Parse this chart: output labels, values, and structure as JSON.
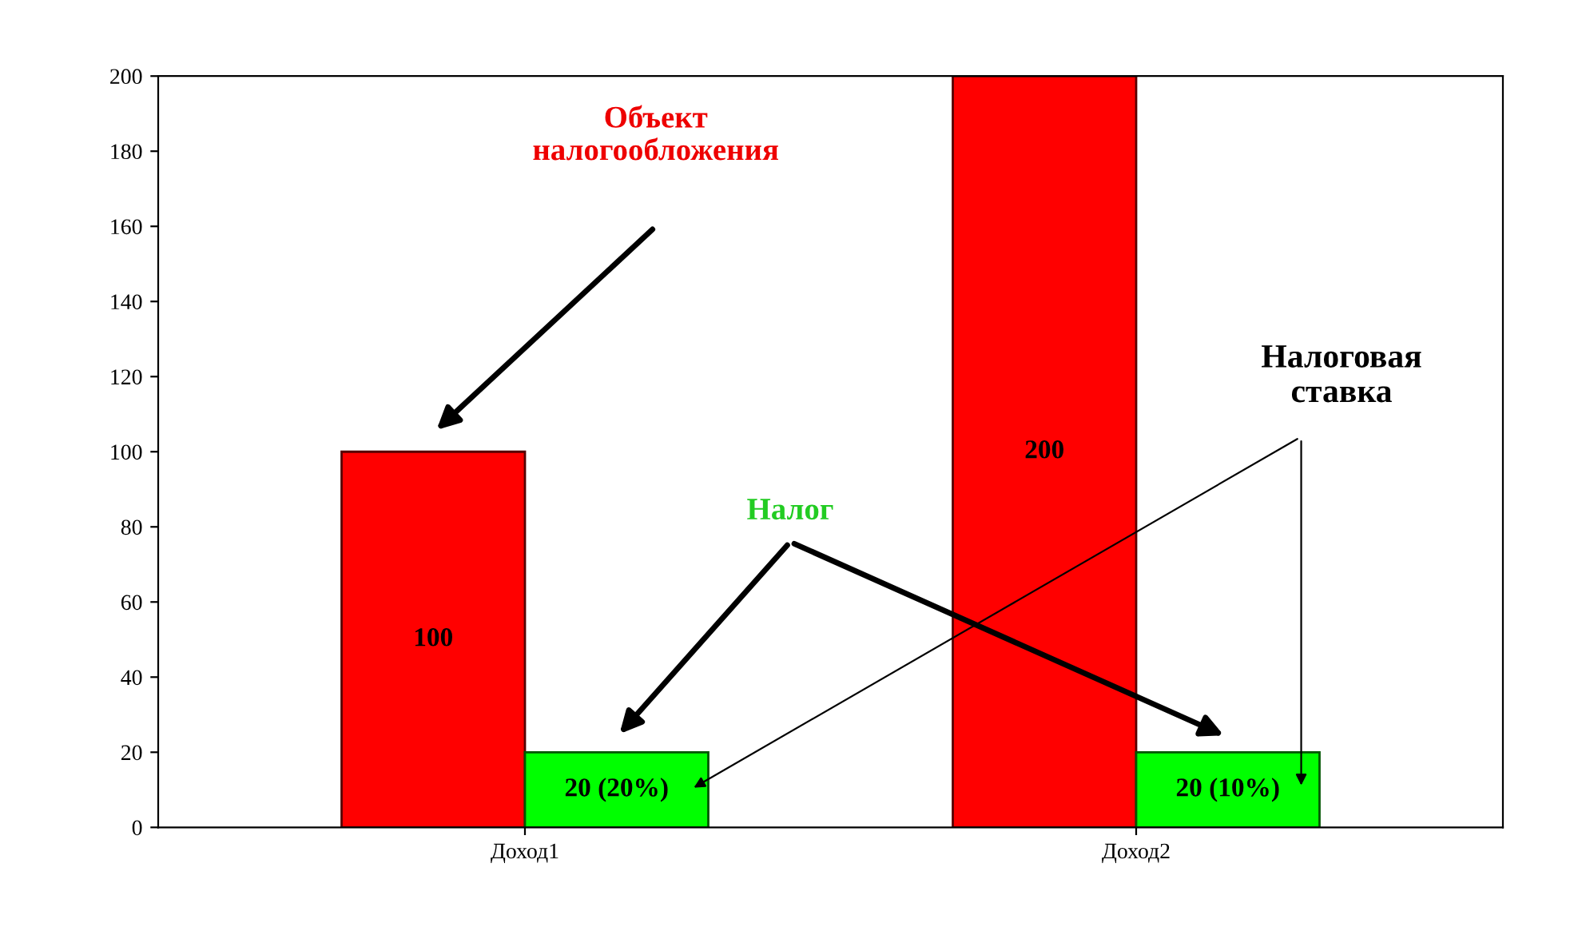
{
  "chart_data": {
    "type": "bar",
    "categories": [
      "Доход1",
      "Доход2"
    ],
    "series": [
      {
        "color": "#ff0000",
        "values": [
          100,
          200
        ],
        "value_labels": [
          "100",
          "200"
        ]
      },
      {
        "color": "#00ff00",
        "values": [
          20,
          20
        ],
        "value_labels": [
          "20 (20%)",
          "20 (10%)"
        ]
      }
    ],
    "ylim": [
      0,
      200
    ],
    "yticks": [
      0,
      20,
      40,
      60,
      80,
      100,
      120,
      140,
      160,
      180,
      200
    ],
    "grid": false,
    "legend": false,
    "annotations": [
      "Объект\nналогообложения",
      "Налог",
      "Налоговая\nставка"
    ]
  }
}
